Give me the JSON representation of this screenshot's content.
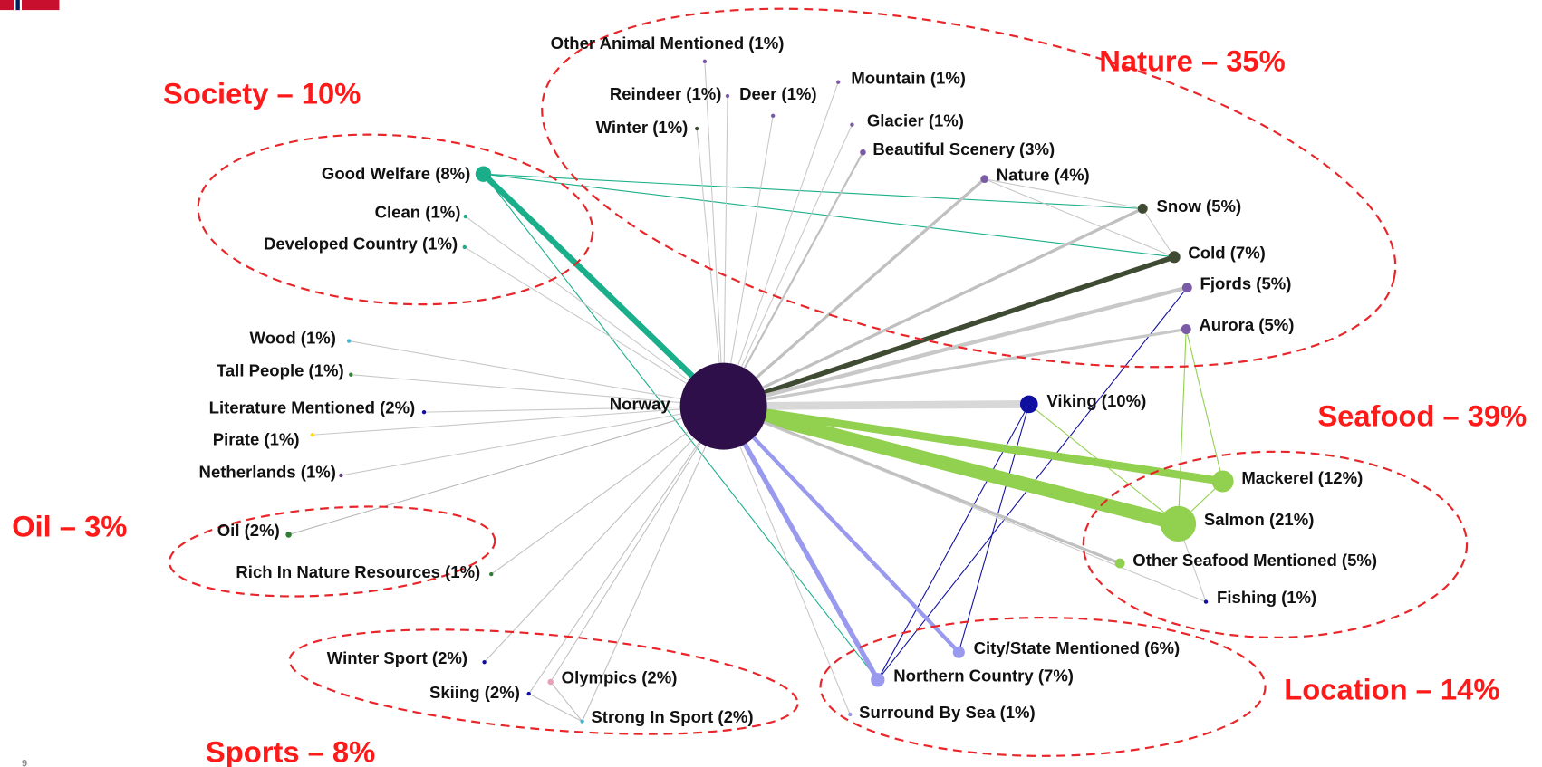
{
  "center": {
    "label": "Norway"
  },
  "groups": [
    {
      "label": "Society – 10%"
    },
    {
      "label": "Nature – 35%"
    },
    {
      "label": "Seafood – 39%"
    },
    {
      "label": "Oil – 3%"
    },
    {
      "label": "Location – 14%"
    },
    {
      "label": "Sports – 8%"
    }
  ],
  "nodes": [
    {
      "label": "Other Animal Mentioned (1%)"
    },
    {
      "label": "Reindeer (1%)"
    },
    {
      "label": "Deer (1%)"
    },
    {
      "label": "Mountain (1%)"
    },
    {
      "label": "Winter (1%)"
    },
    {
      "label": "Glacier (1%)"
    },
    {
      "label": "Beautiful Scenery (3%)"
    },
    {
      "label": "Nature (4%)"
    },
    {
      "label": "Snow (5%)"
    },
    {
      "label": "Cold (7%)"
    },
    {
      "label": "Fjords (5%)"
    },
    {
      "label": "Aurora (5%)"
    },
    {
      "label": "Viking (10%)"
    },
    {
      "label": "Mackerel (12%)"
    },
    {
      "label": "Salmon (21%)"
    },
    {
      "label": "Other Seafood Mentioned (5%)"
    },
    {
      "label": "Fishing (1%)"
    },
    {
      "label": "City/State Mentioned (6%)"
    },
    {
      "label": "Northern Country (7%)"
    },
    {
      "label": "Surround By Sea (1%)"
    },
    {
      "label": "Strong In Sport (2%)"
    },
    {
      "label": "Olympics (2%)"
    },
    {
      "label": "Skiing (2%)"
    },
    {
      "label": "Winter Sport (2%)"
    },
    {
      "label": "Rich In Nature Resources (1%)"
    },
    {
      "label": "Oil (2%)"
    },
    {
      "label": "Netherlands (1%)"
    },
    {
      "label": "Pirate (1%)"
    },
    {
      "label": "Literature Mentioned (2%)"
    },
    {
      "label": "Tall People (1%)"
    },
    {
      "label": "Wood (1%)"
    },
    {
      "label": "Developed Country (1%)"
    },
    {
      "label": "Clean (1%)"
    },
    {
      "label": "Good Welfare (8%)"
    }
  ],
  "page_number": "9"
}
